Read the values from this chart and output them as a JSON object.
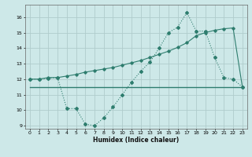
{
  "xlabel": "Humidex (Indice chaleur)",
  "bg_color": "#cde8e8",
  "grid_color": "#b0cccc",
  "line_color": "#2e7d6e",
  "xlim": [
    -0.5,
    23.5
  ],
  "ylim": [
    8.8,
    16.8
  ],
  "yticks": [
    9,
    10,
    11,
    12,
    13,
    14,
    15,
    16
  ],
  "xticks": [
    0,
    1,
    2,
    3,
    4,
    5,
    6,
    7,
    8,
    9,
    10,
    11,
    12,
    13,
    14,
    15,
    16,
    17,
    18,
    19,
    20,
    21,
    22,
    23
  ],
  "line1_x": [
    0,
    1,
    2,
    3,
    4,
    5,
    6,
    7,
    8,
    9,
    10,
    11,
    12,
    13,
    14,
    15,
    16,
    17,
    18,
    19,
    20,
    21,
    22,
    23
  ],
  "line1_y": [
    12.0,
    12.0,
    12.1,
    12.1,
    12.2,
    12.3,
    12.45,
    12.55,
    12.65,
    12.75,
    12.9,
    13.05,
    13.2,
    13.4,
    13.6,
    13.8,
    14.05,
    14.35,
    14.8,
    15.0,
    15.15,
    15.25,
    15.3,
    11.5
  ],
  "line2_x": [
    0,
    1,
    2,
    3,
    4,
    5,
    6,
    7,
    8,
    9,
    10,
    11,
    12,
    13,
    14,
    15,
    16,
    17,
    18,
    19,
    20,
    21,
    22,
    23
  ],
  "line2_y": [
    12.0,
    12.0,
    12.05,
    12.1,
    10.1,
    10.1,
    9.1,
    9.0,
    9.5,
    10.2,
    11.0,
    11.8,
    12.5,
    13.1,
    14.0,
    15.0,
    15.35,
    16.3,
    15.1,
    15.1,
    13.4,
    12.1,
    12.0,
    11.5
  ],
  "line3_x": [
    0,
    23
  ],
  "line3_y": [
    11.5,
    11.5
  ]
}
